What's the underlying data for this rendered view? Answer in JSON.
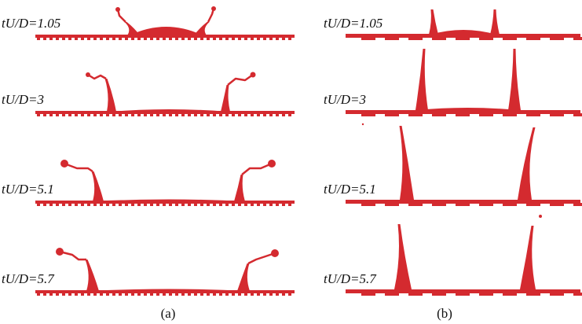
{
  "panels": [
    {
      "label": "(a)",
      "frames": [
        {
          "label": "tU/D=1.05"
        },
        {
          "label": "tU/D=3"
        },
        {
          "label": "tU/D=5.1"
        },
        {
          "label": "tU/D=5.7"
        }
      ]
    },
    {
      "label": "(b)",
      "frames": [
        {
          "label": "tU/D=1.05"
        },
        {
          "label": "tU/D=3"
        },
        {
          "label": "tU/D=5.1"
        },
        {
          "label": "tU/D=5.7"
        }
      ]
    }
  ]
}
